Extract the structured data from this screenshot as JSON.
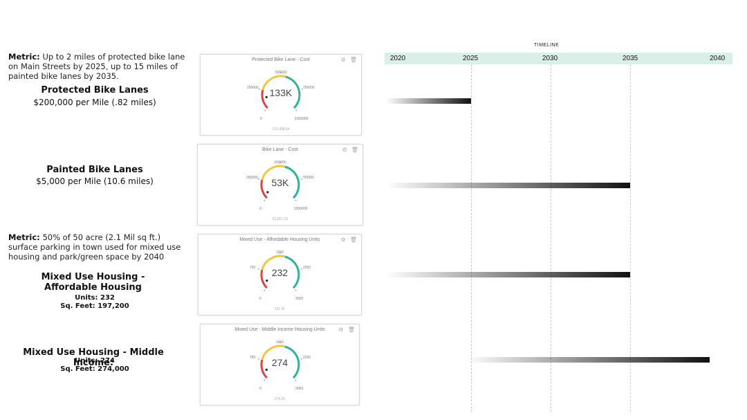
{
  "left": {
    "metric1_label": "Metric:",
    "metric1_text": "Up to 2 miles of protected bike lane on Main Streets by 2025, up to 15 miles of painted bike lanes by 2035.",
    "protected_title": "Protected Bike Lanes",
    "protected_cost": "$200,000 per Mile (.82 miles)",
    "painted_title": "Painted Bike Lanes",
    "painted_cost": "$5,000 per Mile (10.6 miles)",
    "metric2_label": "Metric:",
    "metric2_text": "50% of 50 acre (2.1 Mil sq ft.) surface parking in town used for mixed use housing and park/green space by 2040",
    "affordable_title": "Mixed Use Housing - Affordable Housing",
    "affordable_units": "Units: 232",
    "affordable_sqft": "Sq. Feet: 197,200",
    "middle_title": "Mixed Use Housing - Middle Income:",
    "middle_units": "Units: 274",
    "middle_sqft": "Sq. Feet: 274,000"
  },
  "widgets": [
    {
      "title": "Protected Bike Lane - Cost",
      "value": "133K",
      "footer": "133,498.54",
      "fraction": 0.133,
      "ticks": {
        "min": "0",
        "q1": "250000",
        "mid": "500000",
        "q3": "750000",
        "max": "1000000"
      }
    },
    {
      "title": "Bike Lane - Cost",
      "value": "53K",
      "footer": "52,857.23",
      "fraction": 0.053,
      "ticks": {
        "min": "0",
        "q1": "250000",
        "mid": "500000",
        "q3": "750000",
        "max": "1000000"
      }
    },
    {
      "title": "Mixed Use - Affordable Housing Units",
      "value": "232",
      "footer": "231.51",
      "fraction": 0.077,
      "ticks": {
        "min": "0",
        "q1": "750",
        "mid": "1500",
        "q3": "2250",
        "max": "3000"
      }
    },
    {
      "title": "Mixed Use - Middle Income Housing Units",
      "value": "274",
      "footer": "274.26",
      "fraction": 0.091,
      "ticks": {
        "min": "0",
        "q1": "750",
        "mid": "1500",
        "q3": "2250",
        "max": "3000"
      }
    }
  ],
  "icons": {
    "settings": "gear-icon",
    "delete": "trash-icon"
  },
  "colors": {
    "red": "#d9453b",
    "yellow": "#f2c53d",
    "teal": "#2bb39a",
    "timeline_header": "#d9efe8"
  },
  "timeline": {
    "title": "TIMELINE",
    "years": [
      "2020",
      "2025",
      "2030",
      "2035",
      "2040"
    ],
    "bars": [
      {
        "name": "Protected Bike Lanes",
        "start": 2020,
        "end": 2025
      },
      {
        "name": "Painted Bike Lanes",
        "start": 2020,
        "end": 2035
      },
      {
        "name": "Mixed Use Housing - Affordable",
        "start": 2020,
        "end": 2035
      },
      {
        "name": "Mixed Use Housing - Middle Income",
        "start": 2025,
        "end": 2040
      }
    ]
  }
}
